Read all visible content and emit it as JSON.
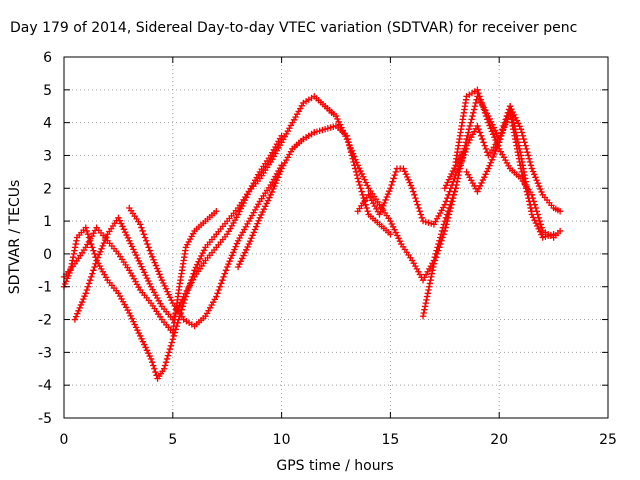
{
  "chart_data": {
    "type": "scatter",
    "title": "Day 179 of 2014, Sidereal Day-to-day VTEC variation (SDTVAR) for receiver penc",
    "xlabel": "GPS time / hours",
    "ylabel": "SDTVAR / TECUs",
    "xlim": [
      0,
      25
    ],
    "ylim": [
      -5,
      6
    ],
    "xticks": [
      0,
      5,
      10,
      15,
      20,
      25
    ],
    "yticks": [
      -5,
      -4,
      -3,
      -2,
      -1,
      0,
      1,
      2,
      3,
      4,
      5,
      6
    ],
    "grid": true,
    "marker": "+",
    "marker_color": "#ff0000",
    "series": [
      {
        "x": [
          0.0,
          0.3,
          0.6,
          1.0,
          1.5,
          2.0,
          2.5,
          3.0,
          3.5,
          4.0,
          4.3,
          4.6,
          5.0,
          5.5,
          6.0,
          6.5,
          7.0,
          7.5,
          8.0,
          8.5,
          9.0,
          9.5,
          10.0,
          10.5,
          11.0,
          11.5,
          12.0,
          12.3
        ],
        "y": [
          -1.0,
          -0.5,
          0.5,
          0.8,
          -0.2,
          -0.8,
          -1.2,
          -1.8,
          -2.5,
          -3.2,
          -3.8,
          -3.5,
          -2.6,
          -1.5,
          -0.5,
          0.2,
          0.6,
          1.0,
          1.4,
          1.9,
          2.3,
          2.8,
          3.4,
          4.0,
          4.6,
          4.8,
          4.5,
          4.3
        ]
      },
      {
        "x": [
          0.0,
          0.5,
          1.0,
          1.5,
          2.0,
          2.5,
          3.0,
          3.5,
          4.0,
          4.5,
          5.0,
          5.3,
          5.6,
          6.0,
          6.5,
          7.0
        ],
        "y": [
          -0.7,
          -0.3,
          0.2,
          0.8,
          0.4,
          0.0,
          -0.5,
          -1.1,
          -1.5,
          -2.0,
          -2.4,
          -1.0,
          0.2,
          0.7,
          1.0,
          1.3
        ]
      },
      {
        "x": [
          0.5,
          1.0,
          1.5,
          2.0,
          2.5,
          3.0,
          3.5,
          4.0,
          4.5,
          5.0,
          5.5,
          6.0,
          6.5,
          7.0,
          7.5,
          8.0,
          8.5,
          9.0,
          9.5,
          10.0
        ],
        "y": [
          -2.0,
          -1.2,
          -0.2,
          0.6,
          1.1,
          0.4,
          -0.3,
          -1.0,
          -1.6,
          -2.0,
          -1.3,
          -0.7,
          -0.2,
          0.2,
          0.6,
          1.2,
          1.9,
          2.5,
          3.0,
          3.6
        ]
      },
      {
        "x": [
          3.0,
          3.5,
          4.0,
          4.5,
          5.0,
          5.5,
          6.0,
          6.5,
          7.0,
          7.5,
          8.0,
          8.5,
          9.0,
          9.5,
          10.0
        ],
        "y": [
          1.4,
          0.9,
          0.0,
          -0.8,
          -1.5,
          -2.0,
          -2.2,
          -1.9,
          -1.3,
          -0.4,
          0.4,
          1.0,
          1.6,
          2.1,
          2.7
        ]
      },
      {
        "x": [
          8.0,
          8.5,
          9.0,
          9.5,
          10.0,
          10.5,
          11.0,
          11.5
        ],
        "y": [
          -0.4,
          0.3,
          1.1,
          1.8,
          2.6,
          3.2,
          3.5,
          3.7
        ]
      },
      {
        "x": [
          10.5,
          11.0,
          11.5,
          12.0,
          12.5,
          13.0,
          13.5,
          14.0,
          14.5,
          15.0
        ],
        "y": [
          3.2,
          3.5,
          3.7,
          3.8,
          3.9,
          3.6,
          2.3,
          1.2,
          0.9,
          0.6
        ]
      },
      {
        "x": [
          12.0,
          12.5,
          13.0,
          13.5,
          14.0,
          14.5,
          15.0,
          15.5,
          16.0,
          16.5,
          17.0,
          17.5,
          18.0
        ],
        "y": [
          4.5,
          4.2,
          3.5,
          2.7,
          2.0,
          1.5,
          1.0,
          0.3,
          -0.2,
          -0.8,
          -0.2,
          1.0,
          2.0
        ]
      },
      {
        "x": [
          13.5,
          14.0,
          14.5,
          15.0,
          15.3,
          15.6,
          16.0,
          16.5,
          17.0,
          17.5,
          18.0,
          18.5
        ],
        "y": [
          1.3,
          1.8,
          1.2,
          2.0,
          2.6,
          2.6,
          2.0,
          1.0,
          0.9,
          1.5,
          2.4,
          3.2
        ]
      },
      {
        "x": [
          16.5,
          17.0,
          17.5,
          18.0,
          18.5,
          19.0,
          19.5,
          20.0,
          20.5,
          21.0,
          21.5,
          22.0,
          22.5,
          22.8
        ],
        "y": [
          -1.9,
          -0.3,
          0.7,
          2.0,
          3.5,
          4.8,
          4.2,
          3.5,
          4.5,
          3.8,
          2.6,
          1.8,
          1.4,
          1.3
        ]
      },
      {
        "x": [
          18.0,
          18.5,
          19.0,
          19.5,
          20.0,
          20.5,
          21.0,
          21.5,
          22.0,
          22.5,
          22.8
        ],
        "y": [
          2.8,
          4.8,
          5.0,
          4.0,
          3.2,
          2.6,
          2.3,
          1.8,
          0.7,
          0.5,
          0.7
        ]
      },
      {
        "x": [
          17.5,
          18.0,
          18.5,
          19.0,
          19.5,
          20.0,
          20.5,
          21.0,
          21.5
        ],
        "y": [
          2.0,
          2.7,
          3.3,
          3.9,
          3.0,
          3.5,
          4.3,
          2.6,
          1.3
        ]
      },
      {
        "x": [
          18.5,
          19.0,
          19.5,
          20.0,
          20.5,
          21.0,
          21.5,
          22.0,
          22.5
        ],
        "y": [
          2.5,
          1.9,
          2.6,
          3.4,
          4.5,
          3.0,
          1.2,
          0.5,
          0.6
        ]
      }
    ]
  }
}
